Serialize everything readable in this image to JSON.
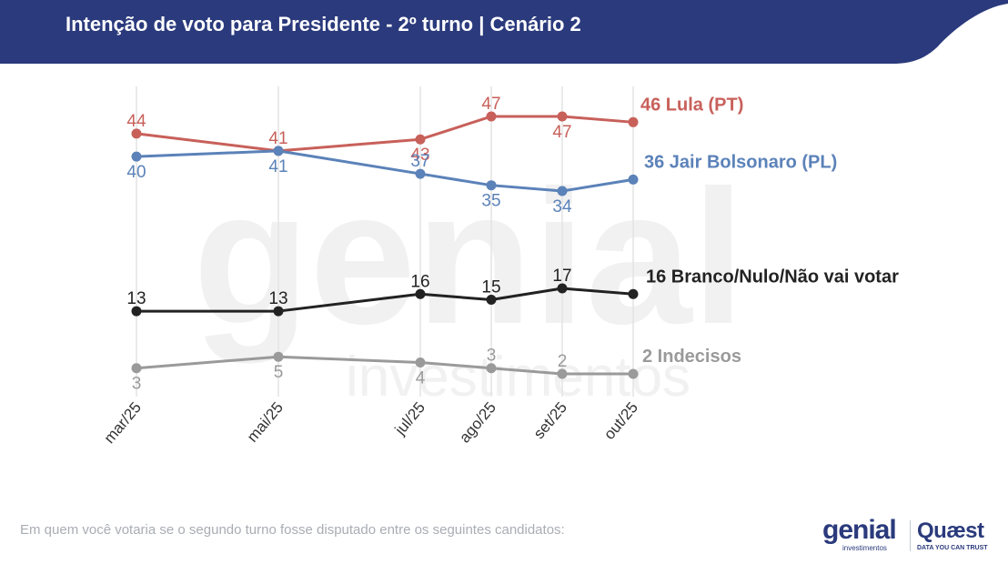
{
  "header": {
    "title": "Intenção de voto para Presidente - 2º turno | Cenário 2",
    "band_color": "#2a3a7c"
  },
  "footer": {
    "note": "Em quem você votaria se o segundo turno fosse disputado entre os seguintes candidatos:"
  },
  "watermark": {
    "word": "genial",
    "sub": "investimentos"
  },
  "logos": {
    "genial": {
      "word": "genial",
      "sub": "investimentos"
    },
    "quaest": {
      "word": "Quæst",
      "sub": "DATA YOU CAN TRUST"
    }
  },
  "chart_data": {
    "type": "line",
    "title": "Intenção de voto para Presidente - 2º turno | Cenário 2",
    "x": [
      "mar/25",
      "mai/25",
      "jul/25",
      "ago/25",
      "set/25",
      "out/25"
    ],
    "x_dates": [
      "2025-03",
      "2025-05",
      "2025-07",
      "2025-08",
      "2025-09",
      "2025-10"
    ],
    "ylim": [
      0,
      50
    ],
    "grid": {
      "vertical": true,
      "horizontal": false
    },
    "legend": "end-labels",
    "series": [
      {
        "name": "Lula (PT)",
        "end_label": "46 Lula (PT)",
        "color": "#c8605a",
        "values": [
          44,
          41,
          43,
          47,
          47,
          46
        ]
      },
      {
        "name": "Jair Bolsonaro (PL)",
        "end_label": "36 Jair Bolsonaro (PL)",
        "color": "#5b82b9",
        "values": [
          40,
          41,
          37,
          35,
          34,
          36
        ]
      },
      {
        "name": "Branco/Nulo/Não vai votar",
        "end_label": "16 Branco/Nulo/Não vai votar",
        "color": "#222222",
        "values": [
          13,
          13,
          16,
          15,
          17,
          16
        ]
      },
      {
        "name": "Indecisos",
        "end_label": "2 Indecisos",
        "color": "#9a9a9a",
        "values": [
          3,
          5,
          4,
          3,
          2,
          2
        ]
      }
    ]
  }
}
